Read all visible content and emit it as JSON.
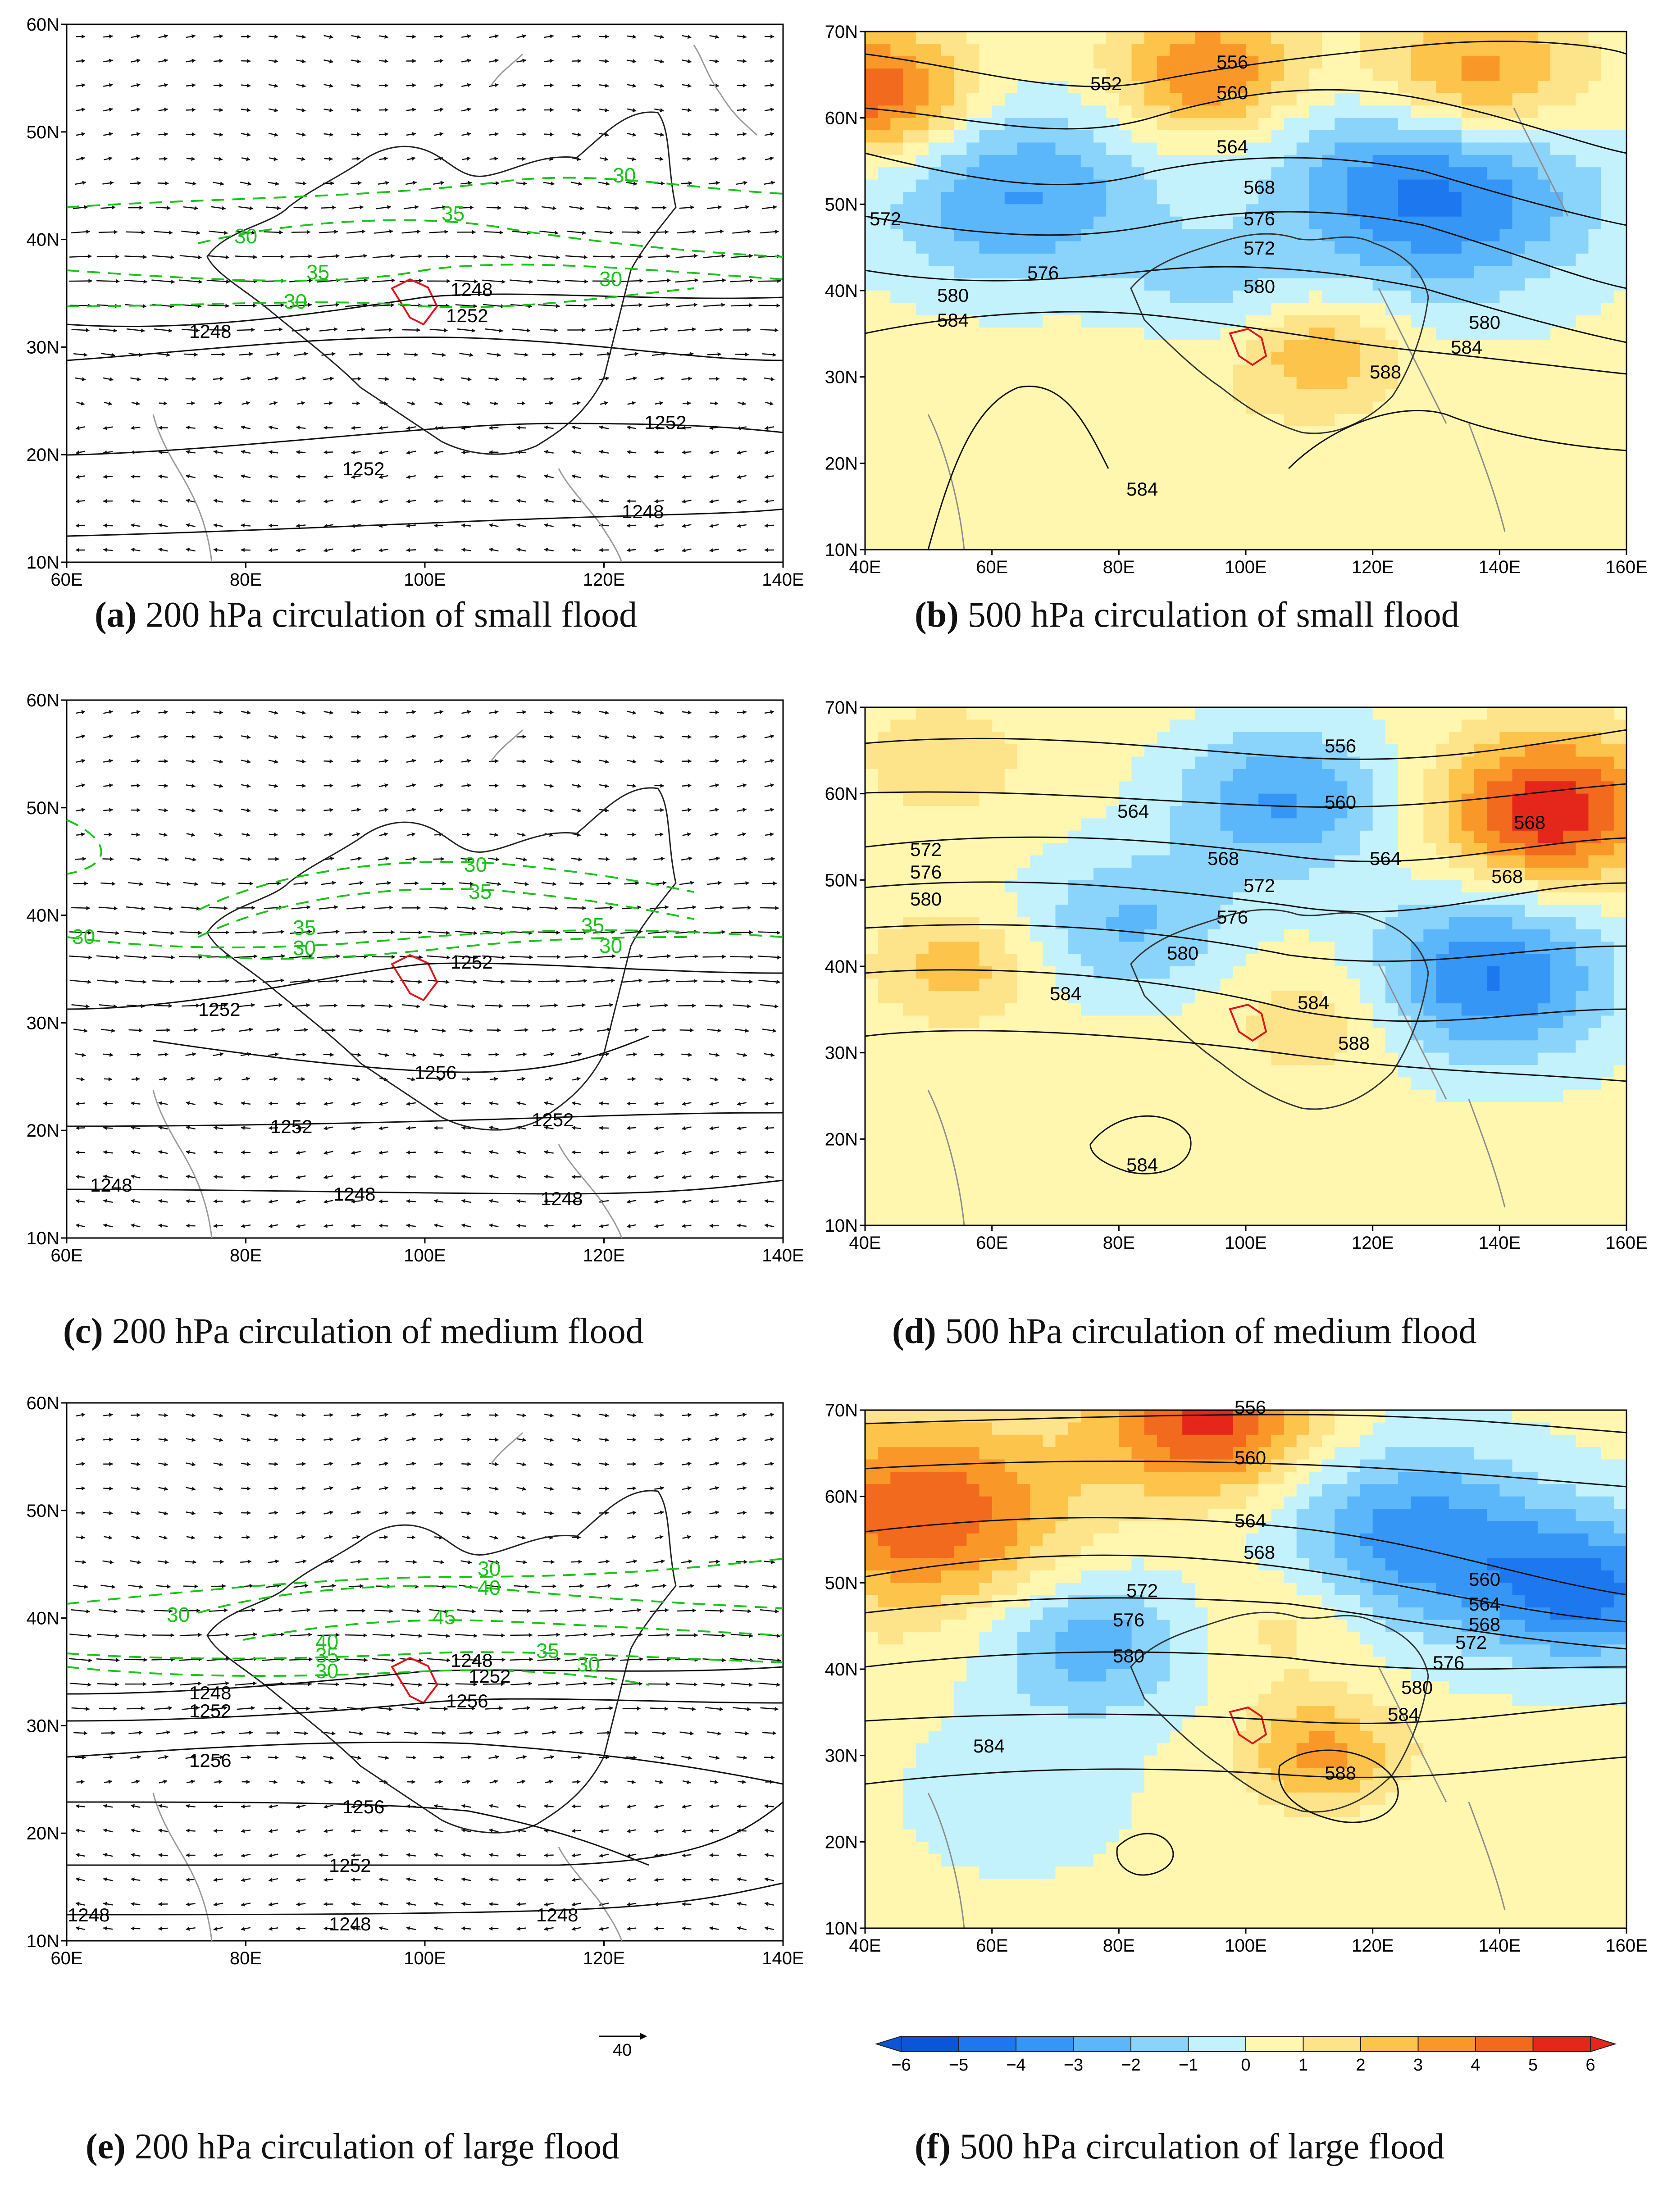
{
  "panels": [
    {
      "id": "a",
      "type": "wind200",
      "caption_letter": "(a)",
      "caption_text": " 200 hPa circulation of small flood",
      "lat_ticks": [
        "10N",
        "20N",
        "30N",
        "40N",
        "50N",
        "60N"
      ],
      "lon_ticks": [
        "60E",
        "80E",
        "100E",
        "120E",
        "140E"
      ],
      "height_labels": [
        "1248",
        "1252",
        "1252",
        "1252",
        "1248",
        "1248"
      ],
      "isotach_labels": [
        "30",
        "35",
        "30",
        "35",
        "30",
        "30"
      ]
    },
    {
      "id": "b",
      "type": "hgt500",
      "caption_letter": "(b)",
      "caption_text": " 500 hPa circulation of small flood",
      "lat_ticks": [
        "10N",
        "20N",
        "30N",
        "40N",
        "50N",
        "60N",
        "70N"
      ],
      "lon_ticks": [
        "40E",
        "60E",
        "80E",
        "100E",
        "120E",
        "140E",
        "160E"
      ],
      "height_labels": [
        "552",
        "556",
        "560",
        "564",
        "568",
        "572",
        "576",
        "572",
        "576",
        "580",
        "580",
        "584",
        "580",
        "584",
        "588",
        "584"
      ]
    },
    {
      "id": "c",
      "type": "wind200",
      "caption_letter": "(c)",
      "caption_text": " 200 hPa circulation of medium flood",
      "lat_ticks": [
        "10N",
        "20N",
        "30N",
        "40N",
        "50N",
        "60N"
      ],
      "lon_ticks": [
        "60E",
        "80E",
        "100E",
        "120E",
        "140E"
      ],
      "height_labels": [
        "1252",
        "1252",
        "1256",
        "1252",
        "1252",
        "1248",
        "1248",
        "1248"
      ],
      "isotach_labels": [
        "30",
        "35",
        "30",
        "35",
        "30",
        "35",
        "30"
      ]
    },
    {
      "id": "d",
      "type": "hgt500",
      "caption_letter": "(d)",
      "caption_text": " 500 hPa circulation of medium flood",
      "lat_ticks": [
        "10N",
        "20N",
        "30N",
        "40N",
        "50N",
        "60N",
        "70N"
      ],
      "lon_ticks": [
        "40E",
        "60E",
        "80E",
        "100E",
        "120E",
        "140E",
        "160E"
      ],
      "height_labels": [
        "556",
        "560",
        "564",
        "568",
        "564",
        "568",
        "568",
        "572",
        "576",
        "572",
        "576",
        "580",
        "580",
        "584",
        "584",
        "588",
        "584"
      ]
    },
    {
      "id": "e",
      "type": "wind200",
      "caption_letter": "(e)",
      "caption_text": " 200 hPa circulation of large flood",
      "lat_ticks": [
        "10N",
        "20N",
        "30N",
        "40N",
        "50N",
        "60N"
      ],
      "lon_ticks": [
        "60E",
        "80E",
        "100E",
        "120E",
        "140E"
      ],
      "height_labels": [
        "1248",
        "1252",
        "1256",
        "1248",
        "1252",
        "1256",
        "1256",
        "1252",
        "1248",
        "1248",
        "1248"
      ],
      "isotach_labels": [
        "30",
        "40",
        "30",
        "40",
        "45",
        "35",
        "30",
        "35",
        "30"
      ]
    },
    {
      "id": "f",
      "type": "hgt500",
      "caption_letter": "(f)",
      "caption_text": " 500 hPa circulation of large flood",
      "lat_ticks": [
        "10N",
        "20N",
        "30N",
        "40N",
        "50N",
        "60N",
        "70N"
      ],
      "lon_ticks": [
        "40E",
        "60E",
        "80E",
        "100E",
        "120E",
        "140E",
        "160E"
      ],
      "height_labels": [
        "556",
        "560",
        "564",
        "568",
        "560",
        "564",
        "568",
        "572",
        "576",
        "572",
        "576",
        "580",
        "580",
        "584",
        "584",
        "588"
      ]
    }
  ],
  "reference_vector": {
    "label": "40"
  },
  "colorbar": {
    "ticks": [
      "-6",
      "-5",
      "-4",
      "-3",
      "-2",
      "-1",
      "0",
      "1",
      "2",
      "3",
      "4",
      "5",
      "6"
    ],
    "colors": [
      "#0b55d8",
      "#1d78ef",
      "#3596f6",
      "#5cb6fa",
      "#8ad4fb",
      "#c3f2fd",
      "#fff7b0",
      "#fde48a",
      "#fcc44a",
      "#f99828",
      "#f26a1d",
      "#e4261b"
    ]
  },
  "colors": {
    "isotach": "#19c419",
    "basin": "#e0141c",
    "height_contour": "#111111",
    "coast": "#9a9a9a"
  }
}
